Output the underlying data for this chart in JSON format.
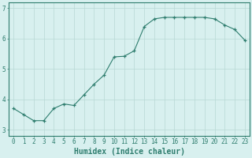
{
  "x": [
    0,
    1,
    2,
    3,
    4,
    5,
    6,
    7,
    8,
    9,
    10,
    11,
    12,
    13,
    14,
    15,
    16,
    17,
    18,
    19,
    20,
    21,
    22,
    23
  ],
  "y": [
    3.7,
    3.5,
    3.3,
    3.3,
    3.7,
    3.85,
    3.8,
    4.15,
    4.5,
    4.8,
    5.4,
    5.42,
    5.6,
    6.4,
    6.65,
    6.7,
    6.7,
    6.7,
    6.7,
    6.7,
    6.65,
    6.45,
    6.3,
    5.95
  ],
  "xlabel": "Humidex (Indice chaleur)",
  "ylim": [
    2.8,
    7.2
  ],
  "xlim": [
    -0.5,
    23.5
  ],
  "yticks": [
    3,
    4,
    5,
    6,
    7
  ],
  "xticks": [
    0,
    1,
    2,
    3,
    4,
    5,
    6,
    7,
    8,
    9,
    10,
    11,
    12,
    13,
    14,
    15,
    16,
    17,
    18,
    19,
    20,
    21,
    22,
    23
  ],
  "line_color": "#2e7d6e",
  "marker_color": "#2e7d6e",
  "bg_color": "#d8f0ef",
  "grid_color": "#b8d8d5",
  "axis_color": "#2e7d6e",
  "tick_label_fontsize": 5.5,
  "xlabel_fontsize": 7.0
}
